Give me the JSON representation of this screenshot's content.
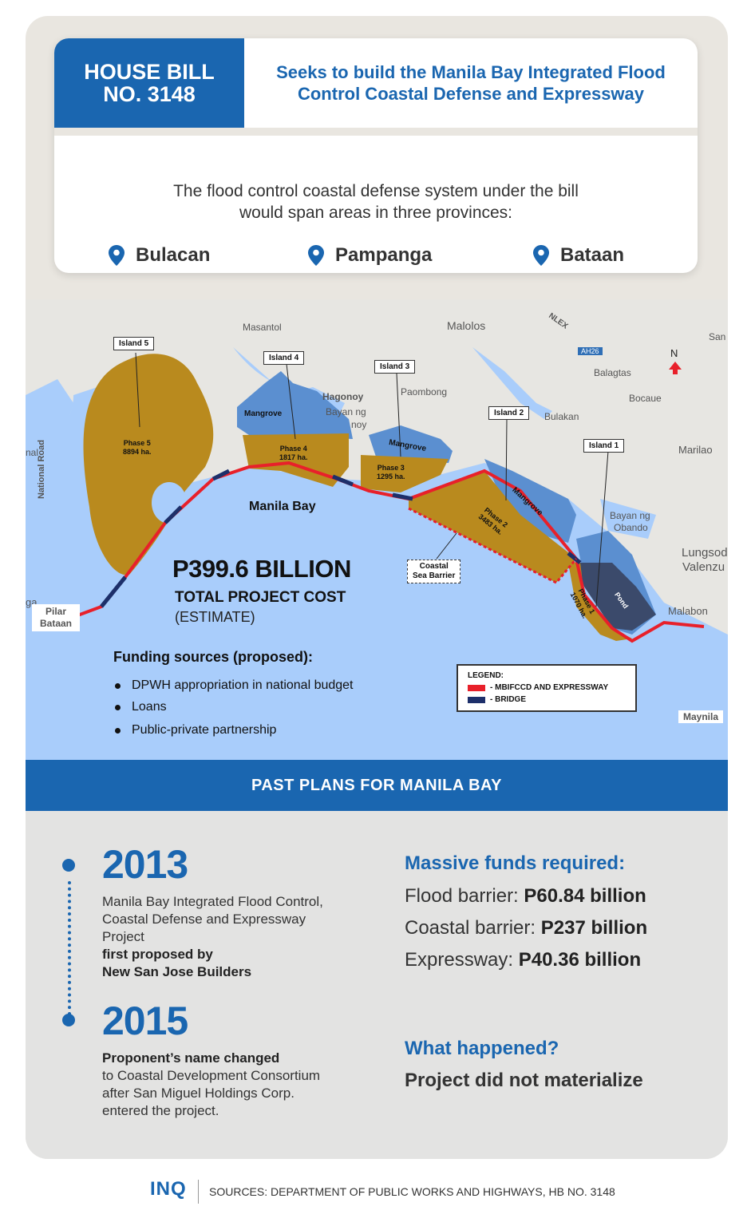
{
  "header": {
    "bill_line1": "HOUSE BILL",
    "bill_line2": "NO. 3148",
    "desc_line1": "Seeks to build the Manila Bay Integrated Flood",
    "desc_line2": "Control Coastal Defense and Expressway",
    "span_line1": "The flood control coastal defense system under the bill",
    "span_line2": "would span areas in three provinces:",
    "provinces": [
      "Bulacan",
      "Pampanga",
      "Bataan"
    ]
  },
  "map": {
    "place_labels": [
      "Masantol",
      "Malolos",
      "San",
      "Hagonoy",
      "Bayan ng",
      "noy",
      "Paombong",
      "Balagtas",
      "Bocaue",
      "Bulakan",
      "Marilao",
      "Bayan ng",
      "Obando",
      "Lungsod",
      "Valenzu",
      "Malabon",
      "Maynila",
      "nal",
      "ga",
      "National Road",
      "Pilar",
      "Bataan",
      "N",
      "NLEX",
      "AH26"
    ],
    "islands": [
      "Island 5",
      "Island 4",
      "Island 3",
      "Island 2",
      "Island 1"
    ],
    "phases": [
      {
        "name": "Phase 5",
        "area": "8894 ha."
      },
      {
        "name": "Phase 4",
        "area": "1817 ha."
      },
      {
        "name": "Phase 3",
        "area": "1295 ha."
      },
      {
        "name": "Phase 2",
        "area": "3483 ha."
      },
      {
        "name": "Phase 1",
        "area": "1070 ha."
      }
    ],
    "mangrove_labels": [
      "Mangrove",
      "Mangrove",
      "Mangrove"
    ],
    "pond_label": "Pond",
    "bay_label": "Manila Bay",
    "coastal_barrier_line1": "Coastal",
    "coastal_barrier_line2": "Sea Barrier",
    "colors": {
      "water": "#a9cdfb",
      "land": "#e7e6e2",
      "reclaim": "#b98a1e",
      "mangrove": "#5b8fd0",
      "expressway": "#e8202a",
      "bridge": "#1d2f6a"
    }
  },
  "cost": {
    "amount": "P399.6 BILLION",
    "label": "TOTAL PROJECT COST",
    "note": "(ESTIMATE)"
  },
  "funding": {
    "title": "Funding sources (proposed):",
    "items": [
      "DPWH appropriation in national budget",
      "Loans",
      "Public-private partnership"
    ]
  },
  "legend": {
    "title": "LEGEND:",
    "items": [
      {
        "label": "- MBIFCCD AND EXPRESSWAY",
        "color": "#e8202a"
      },
      {
        "label": "- BRIDGE",
        "color": "#1d2f6a"
      }
    ]
  },
  "past_plans": {
    "title": "PAST PLANS FOR MANILA BAY",
    "y2013": {
      "year": "2013",
      "l1": "Manila Bay Integrated Flood Control,",
      "l2": "Coastal Defense and Expressway",
      "l3a": "Project ",
      "l3b": "first proposed by",
      "l4": "New San Jose Builders"
    },
    "y2015": {
      "year": "2015",
      "l1": "Proponent’s name changed",
      "l2": "to Coastal Development Consortium",
      "l3": "after San Miguel Holdings Corp.",
      "l4": "entered the project."
    },
    "funds_title": "Massive funds required:",
    "funds": [
      {
        "label": "Flood barrier: ",
        "value": "P60.84 billion"
      },
      {
        "label": "Coastal barrier: ",
        "value": "P237 billion"
      },
      {
        "label": "Expressway: ",
        "value": "P40.36 billion"
      }
    ],
    "what_title": "What happened?",
    "what_text": "Project did not materialize"
  },
  "footer": {
    "brand": "INQ",
    "sources": "SOURCES: DEPARTMENT OF PUBLIC WORKS AND HIGHWAYS, HB NO. 3148"
  }
}
